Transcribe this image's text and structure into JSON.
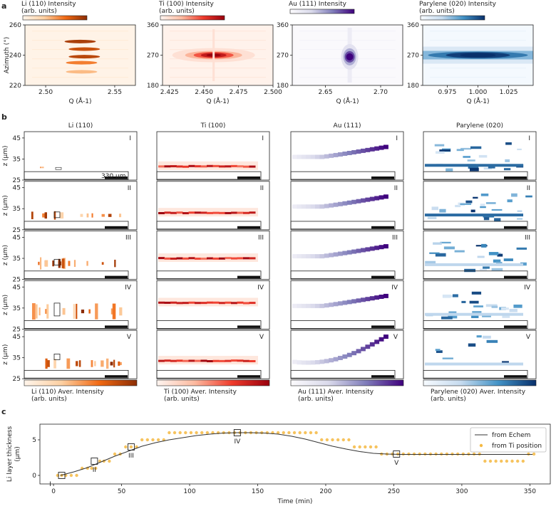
{
  "panels": {
    "a": "a",
    "b": "b",
    "c": "c"
  },
  "colors": {
    "li": [
      "#fff5eb",
      "#fdd0a2",
      "#f16913",
      "#8c2d04"
    ],
    "ti": [
      "#fff5f0",
      "#fcbba1",
      "#ef3b2c",
      "#99000d"
    ],
    "au": [
      "#fcfbfd",
      "#dadaeb",
      "#807dba",
      "#3f007d"
    ],
    "pa": [
      "#f7fbff",
      "#c6dbef",
      "#4292c6",
      "#08306b"
    ],
    "scatter": "#f5b942",
    "line": "#333333"
  },
  "chart_data": [
    {
      "type": "heatmap",
      "title": "Li (110) Intensity\n(arb. units)",
      "xlabel": "Q (Å-1)",
      "ylabel": "Azimuth (°)",
      "xlim": [
        2.485,
        2.565
      ],
      "ylim": [
        220,
        260
      ],
      "xticks": [
        "2.50",
        "2.55"
      ],
      "xtick_values": [
        2.5,
        2.55
      ],
      "yticks": [
        "220",
        "240",
        "260"
      ],
      "ytick_values": [
        220,
        240,
        260
      ],
      "colormap": "li",
      "features": [
        {
          "q": 2.525,
          "azimuth": 249,
          "intensity": 0.9
        },
        {
          "q": 2.528,
          "azimuth": 244,
          "intensity": 0.8
        },
        {
          "q": 2.528,
          "azimuth": 239,
          "intensity": 0.85
        },
        {
          "q": 2.526,
          "azimuth": 235,
          "intensity": 0.6
        },
        {
          "q": 2.526,
          "azimuth": 229,
          "intensity": 0.4
        }
      ]
    },
    {
      "type": "heatmap",
      "title": "Ti (100) Intensity\n(arb. units)",
      "xlabel": "Q (Å-1)",
      "ylabel": "",
      "xlim": [
        2.42,
        2.5
      ],
      "ylim": [
        180,
        360
      ],
      "xticks": [
        "2.425",
        "2.450",
        "2.475",
        "2.500"
      ],
      "xtick_values": [
        2.425,
        2.45,
        2.475,
        2.5
      ],
      "yticks": [
        "180",
        "270",
        "360"
      ],
      "ytick_values": [
        180,
        270,
        360
      ],
      "colormap": "ti",
      "features": [
        {
          "q": 2.457,
          "azimuth": 270,
          "intensity": 1.0
        }
      ]
    },
    {
      "type": "heatmap",
      "title": "Au (111) Intensity",
      "xlabel": "Q (Å-1)",
      "ylabel": "",
      "xlim": [
        2.62,
        2.72
      ],
      "ylim": [
        180,
        360
      ],
      "xticks": [
        "2.65",
        "2.70"
      ],
      "xtick_values": [
        2.65,
        2.7
      ],
      "yticks": [
        "180",
        "270",
        "360"
      ],
      "ytick_values": [
        180,
        270,
        360
      ],
      "colormap": "au",
      "features": [
        {
          "q": 2.672,
          "azimuth": 265,
          "intensity": 1.0
        }
      ]
    },
    {
      "type": "heatmap",
      "title": "Parylene (020) Intensity\n(arb. units)",
      "xlabel": "Q (Å-1)",
      "ylabel": "",
      "xlim": [
        0.955,
        1.045
      ],
      "ylim": [
        180,
        360
      ],
      "xticks": [
        "0.975",
        "1.000",
        "1.025"
      ],
      "xtick_values": [
        0.975,
        1.0,
        1.025
      ],
      "yticks": [
        "180",
        "270",
        "360"
      ],
      "ytick_values": [
        180,
        270,
        360
      ],
      "colormap": "pa",
      "features": [
        {
          "q": 1.0,
          "azimuth": 270,
          "intensity": 1.0
        }
      ]
    },
    {
      "type": "heatmap",
      "columns": [
        "Li (110)",
        "Ti (100)",
        "Au (111)",
        "Parylene (020)"
      ],
      "rows": [
        "I",
        "II",
        "III",
        "IV",
        "V"
      ],
      "ylabel": "z (μm)",
      "ylim": [
        25,
        48
      ],
      "yticks": [
        "25",
        "35",
        "45"
      ],
      "ytick_values": [
        25,
        35,
        45
      ],
      "scalebar_label": "330 μm",
      "colorbar_labels": [
        "Li (110) Aver. Intensity\n(arb. units)",
        "Ti (100) Aver. Intensity\n(arb. units)",
        "Au (111) Aver. Intensity\n(arb. units)",
        "Parylene (020) Aver. Intensity\n(arb. units)"
      ],
      "layer_z": {
        "ti": [
          31.5,
          33,
          35,
          37.5,
          33.5
        ],
        "li_thickness": [
          0,
          2,
          4,
          6,
          3
        ]
      }
    },
    {
      "type": "line",
      "xlabel": "Time (min)",
      "ylabel": "Li layer thickness\n(μm)",
      "xlim": [
        -10,
        365
      ],
      "ylim": [
        -1.2,
        7.2
      ],
      "xticks": [
        "0",
        "50",
        "100",
        "150",
        "200",
        "250",
        "300",
        "350"
      ],
      "xtick_values": [
        0,
        50,
        100,
        150,
        200,
        250,
        300,
        350
      ],
      "yticks": [
        "0",
        "5"
      ],
      "ytick_values": [
        0,
        5
      ],
      "legend": "top-right",
      "series": [
        {
          "name": "from Echem",
          "x": [
            5,
            15,
            25,
            35,
            45,
            55,
            65,
            75,
            85,
            95,
            105,
            115,
            125,
            135,
            145,
            155,
            165,
            175,
            185,
            195,
            205,
            215,
            225,
            235,
            245,
            255,
            270,
            290,
            310,
            330,
            352
          ],
          "y": [
            0,
            0.5,
            1.1,
            1.9,
            2.7,
            3.4,
            4.1,
            4.6,
            5.0,
            5.3,
            5.6,
            5.8,
            5.95,
            6.0,
            6.0,
            5.95,
            5.8,
            5.5,
            5.1,
            4.6,
            4.1,
            3.7,
            3.35,
            3.1,
            3.0,
            2.95,
            2.95,
            2.95,
            2.95,
            2.95,
            2.95
          ]
        },
        {
          "name": "from Ti position",
          "x": [
            3,
            6,
            9,
            13,
            17,
            21,
            25,
            28,
            31,
            34,
            37,
            41,
            45,
            49,
            53,
            57,
            61,
            65,
            69,
            73,
            77,
            81,
            85,
            89,
            93,
            97,
            101,
            105,
            109,
            113,
            117,
            121,
            125,
            129,
            133,
            137,
            141,
            145,
            149,
            153,
            157,
            161,
            165,
            169,
            173,
            177,
            181,
            185,
            189,
            193,
            197,
            201,
            205,
            209,
            213,
            217,
            221,
            225,
            229,
            233,
            237,
            241,
            245,
            249,
            253,
            257,
            261,
            265,
            269,
            273,
            277,
            281,
            285,
            289,
            293,
            297,
            301,
            305,
            309,
            313,
            317,
            321,
            325,
            329,
            333,
            337,
            341,
            345,
            349,
            353
          ],
          "y": [
            0,
            0,
            0,
            0,
            0,
            1,
            1,
            1,
            1,
            2,
            2,
            2,
            3,
            3,
            4,
            4,
            4,
            5,
            5,
            5,
            5,
            5,
            6,
            6,
            6,
            6,
            6,
            6,
            6,
            6,
            6,
            6,
            6,
            6,
            6,
            6,
            6,
            6,
            6,
            6,
            6,
            6,
            6,
            6,
            6,
            6,
            6,
            6,
            6,
            6,
            5,
            5,
            5,
            5,
            5,
            5,
            4,
            4,
            4,
            4,
            4,
            3,
            3,
            3,
            3,
            3,
            3,
            3,
            3,
            3,
            3,
            3,
            3,
            3,
            3,
            3,
            3,
            3,
            3,
            3,
            2,
            2,
            2,
            2,
            2,
            2,
            2,
            2,
            3,
            3
          ]
        }
      ],
      "markers": [
        {
          "label": "I",
          "x": 6,
          "y": 0
        },
        {
          "label": "II",
          "x": 30,
          "y": 2
        },
        {
          "label": "III",
          "x": 57,
          "y": 4
        },
        {
          "label": "IV",
          "x": 135,
          "y": 6
        },
        {
          "label": "V",
          "x": 252,
          "y": 3
        }
      ]
    }
  ]
}
